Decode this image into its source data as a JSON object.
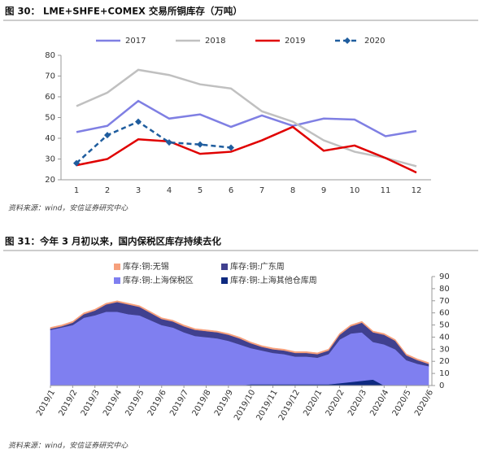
{
  "chart_data": [
    {
      "type": "line",
      "title": "图 30：  LME+SHFE+COMEX 交易所铜库存（万吨）",
      "source": "资料来源：wind，安信证券研究中心",
      "categories": [
        "1",
        "2",
        "3",
        "4",
        "5",
        "6",
        "7",
        "8",
        "9",
        "10",
        "11",
        "12"
      ],
      "series": [
        {
          "name": "2017",
          "color": "#7f7fe3",
          "values": [
            43,
            46,
            58,
            49.5,
            51.5,
            45.5,
            51,
            46,
            49.5,
            49,
            41,
            43.5
          ]
        },
        {
          "name": "2018",
          "color": "#c0c0c0",
          "values": [
            55.5,
            62,
            73,
            70.5,
            66,
            64,
            53,
            48,
            39,
            33.5,
            30.5,
            26.5
          ]
        },
        {
          "name": "2019",
          "color": "#e00000",
          "values": [
            27,
            30,
            39.5,
            38.5,
            32.5,
            33.5,
            39,
            45.5,
            34,
            36.5,
            30.5,
            23.5
          ]
        },
        {
          "name": "2020",
          "color": "#1f5d9e",
          "line_style": "dashed",
          "marker": "diamond",
          "values": [
            28,
            41.5,
            48,
            38,
            37,
            35.5,
            null,
            null,
            null,
            null,
            null,
            null
          ]
        }
      ],
      "ylim": [
        20,
        80
      ],
      "yticks": [
        20,
        30,
        40,
        50,
        60,
        70,
        80
      ]
    },
    {
      "type": "stacked_area",
      "title": "图 31：今年 3 月初以来，国内保税区库存持续去化",
      "source": "资料来源：wind，安信证券研究中心",
      "categories": [
        "2019/1",
        null,
        "2019/2",
        null,
        "2019/3",
        null,
        "2019/4",
        null,
        "2019/5",
        null,
        "2019/6",
        null,
        "2019/7",
        null,
        "2019/8",
        null,
        "2019/9",
        null,
        "2019/10",
        null,
        "2019/11",
        null,
        "2019/12",
        null,
        "2020/1",
        null,
        "2020/2",
        null,
        "2020/3",
        null,
        "2020/4",
        null,
        "2020/5",
        null,
        "2020/6"
      ],
      "series": [
        {
          "name": "库存:铜:无锡",
          "color": "#f6a07c",
          "values": [
            1,
            1,
            1,
            1,
            1,
            1,
            1,
            1,
            1,
            1,
            1,
            1,
            1,
            1,
            1,
            1,
            1,
            1,
            1,
            1,
            1,
            1,
            1,
            1,
            1,
            1,
            1,
            1,
            1,
            1,
            1,
            1,
            1,
            1,
            1
          ]
        },
        {
          "name": "库存:铜:广东周",
          "color": "#40408f",
          "values": [
            1,
            1,
            2,
            3,
            4,
            6,
            8,
            8,
            7,
            6,
            5,
            5,
            5,
            5,
            5,
            5,
            5,
            5,
            4,
            3,
            3,
            3,
            3,
            3,
            3,
            3,
            4,
            6,
            8,
            8,
            8,
            7,
            4,
            3,
            2
          ]
        },
        {
          "name": "库存:铜:上海保税区",
          "color": "#7f7ff0",
          "values": [
            46,
            48,
            50,
            56,
            58,
            61,
            61,
            59,
            58,
            54,
            50,
            48,
            44,
            41,
            40,
            39,
            37,
            34,
            30,
            28,
            26,
            25,
            23,
            23,
            22,
            25,
            36,
            40,
            40,
            31,
            34,
            30,
            21,
            18,
            16
          ]
        },
        {
          "name": "库存:铜:上海其他仓库周",
          "color": "#0e2a80",
          "values": [
            0,
            0,
            0,
            0,
            0,
            0,
            0,
            0,
            0,
            0,
            0,
            0,
            0,
            0,
            0,
            0,
            0,
            0,
            1,
            1,
            1,
            1,
            1,
            1,
            1,
            1,
            2,
            3,
            4,
            5,
            0,
            0,
            0,
            0,
            0
          ]
        }
      ],
      "ylim": [
        0,
        90
      ],
      "yticks": [
        0,
        10,
        20,
        30,
        40,
        50,
        60,
        70,
        80,
        90
      ]
    }
  ]
}
